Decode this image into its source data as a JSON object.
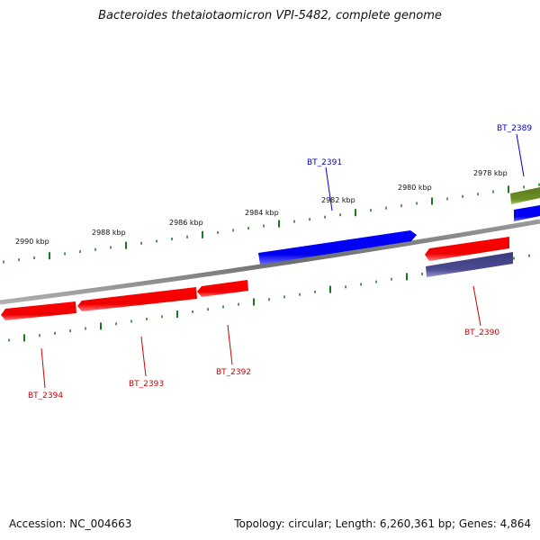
{
  "title": "Bacteroides thetaiotaomicron VPI-5482, complete genome",
  "footer": {
    "accession": "Accession: NC_004663",
    "genome_info": "Topology: circular; Length: 6,260,361 bp; Genes: 4,864"
  },
  "scale_labels": [
    "2990 kbp",
    "2988 kbp",
    "2986 kbp",
    "2984 kbp",
    "2982 kbp",
    "2980 kbp",
    "2978 kbp"
  ],
  "genes": [
    {
      "name": "BT_2389",
      "strand": "forward",
      "color": "#0000ee"
    },
    {
      "name": "BT_2391",
      "strand": "forward",
      "color": "#0000ee"
    },
    {
      "name": "BT_2390",
      "strand": "reverse",
      "color": "#cc0000"
    },
    {
      "name": "BT_2392",
      "strand": "reverse",
      "color": "#cc0000"
    },
    {
      "name": "BT_2393",
      "strand": "reverse",
      "color": "#cc0000"
    },
    {
      "name": "BT_2394",
      "strand": "reverse",
      "color": "#cc0000"
    }
  ],
  "colors": {
    "backbone": "#808080",
    "ticks": "#1a7a1a",
    "forward_gene": "#0000ff",
    "reverse_gene": "#ff0000",
    "olive_feature": "#6b8e23",
    "purple_feature": "#4b4b8f"
  }
}
